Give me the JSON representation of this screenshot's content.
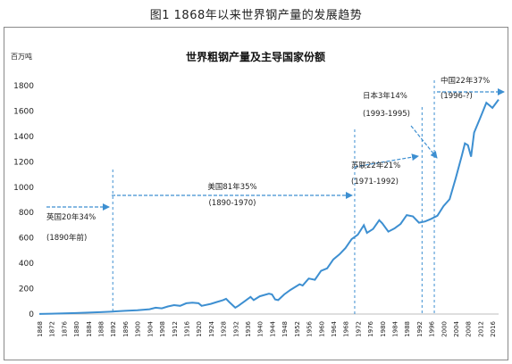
{
  "figure_caption": "图1 1868年以来世界钢产量的发展趋势",
  "chart_data": {
    "type": "line",
    "title": "世界粗钢产量及主导国家份额",
    "unit_label": "百万吨",
    "ylim": [
      0,
      1800
    ],
    "yticks": [
      0,
      200,
      400,
      600,
      800,
      1000,
      1200,
      1400,
      1600,
      1800
    ],
    "xlim": [
      1868,
      2018
    ],
    "xticks": [
      1868,
      1872,
      1876,
      1880,
      1884,
      1888,
      1892,
      1896,
      1900,
      1904,
      1908,
      1912,
      1916,
      1920,
      1924,
      1928,
      1932,
      1936,
      1940,
      1944,
      1948,
      1952,
      1956,
      1960,
      1964,
      1968,
      1972,
      1976,
      1980,
      1984,
      1988,
      1992,
      1996,
      2000,
      2004,
      2008,
      2012,
      2016
    ],
    "line_color": "#3d8fd1",
    "series": [
      {
        "x": [
          1868,
          1872,
          1876,
          1880,
          1884,
          1888,
          1892,
          1896,
          1900,
          1904,
          1906,
          1908,
          1910,
          1912,
          1914,
          1916,
          1918,
          1920,
          1921,
          1924,
          1926,
          1928,
          1929,
          1930,
          1932,
          1933,
          1935,
          1937,
          1938,
          1940,
          1943,
          1944,
          1945,
          1946,
          1948,
          1950,
          1953,
          1954,
          1956,
          1958,
          1960,
          1962,
          1964,
          1966,
          1968,
          1970,
          1972,
          1974,
          1975,
          1977,
          1979,
          1980,
          1982,
          1984,
          1986,
          1988,
          1990,
          1992,
          1994,
          1996,
          1998,
          2000,
          2002,
          2004,
          2006,
          2007,
          2008,
          2009,
          2010,
          2012,
          2014,
          2016,
          2018
        ],
        "y": [
          1,
          3,
          5,
          8,
          11,
          15,
          20,
          25,
          30,
          38,
          50,
          45,
          60,
          70,
          65,
          85,
          90,
          85,
          65,
          80,
          95,
          110,
          120,
          95,
          50,
          65,
          100,
          135,
          110,
          140,
          160,
          155,
          115,
          110,
          155,
          190,
          235,
          225,
          280,
          270,
          340,
          360,
          430,
          470,
          520,
          590,
          625,
          700,
          640,
          670,
          740,
          715,
          650,
          675,
          710,
          780,
          770,
          720,
          730,
          750,
          775,
          850,
          905,
          1070,
          1250,
          1345,
          1330,
          1240,
          1430,
          1545,
          1665,
          1625,
          1690
        ]
      }
    ],
    "annotations": [
      {
        "line1": "英国20年34%",
        "line2": "(1890年前)"
      },
      {
        "line1": "美国81年35%",
        "line2": "(1890-1970)"
      },
      {
        "line1": "苏联22年21%",
        "line2": "(1971-1992)"
      },
      {
        "line1": "日本3年14%",
        "line2": "(1993-1995)"
      },
      {
        "line1": "中国22年37%",
        "line2": "(1996-?)"
      }
    ]
  }
}
